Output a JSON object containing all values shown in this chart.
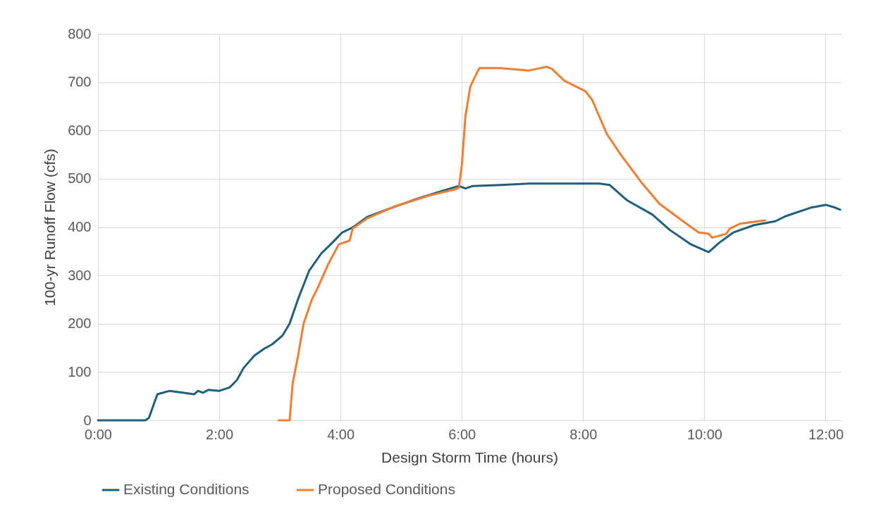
{
  "chart_data": {
    "type": "line",
    "xlabel": "Design Storm Time (hours)",
    "ylabel": "100-yr Runoff Flow (cfs)",
    "xlim": [
      0,
      12.25
    ],
    "ylim": [
      0,
      800
    ],
    "xticks": [
      {
        "value": 0,
        "label": "0:00"
      },
      {
        "value": 2,
        "label": "2:00"
      },
      {
        "value": 4,
        "label": "4:00"
      },
      {
        "value": 6,
        "label": "6:00"
      },
      {
        "value": 8,
        "label": "8:00"
      },
      {
        "value": 10,
        "label": "10:00"
      },
      {
        "value": 12,
        "label": "12:00"
      }
    ],
    "yticks": [
      0,
      100,
      200,
      300,
      400,
      500,
      600,
      700,
      800
    ],
    "grid": true,
    "legend": "bottom",
    "line_style": "solid",
    "series": [
      {
        "name": "Existing Conditions",
        "color": "#1f5f7a",
        "x": [
          0,
          0.78,
          0.84,
          0.98,
          1.18,
          1.59,
          1.65,
          1.73,
          1.82,
          2.0,
          2.17,
          2.29,
          2.4,
          2.58,
          2.75,
          2.87,
          3.04,
          3.16,
          3.3,
          3.48,
          3.68,
          3.86,
          4.03,
          4.2,
          4.44,
          4.78,
          5.25,
          5.6,
          5.95,
          6.06,
          6.18,
          6.64,
          7.11,
          8.27,
          8.44,
          8.73,
          9.14,
          9.43,
          9.78,
          10.07,
          10.24,
          10.48,
          10.82,
          11.17,
          11.35,
          11.75,
          12.0,
          12.16,
          12.24
        ],
        "values": [
          0,
          0,
          5,
          54,
          61,
          54,
          61,
          57,
          63,
          61,
          68,
          83,
          108,
          134,
          149,
          157,
          175,
          200,
          251,
          309,
          345,
          367,
          389,
          399,
          421,
          437,
          458,
          472,
          485,
          480,
          485,
          487,
          490,
          490,
          487,
          455,
          426,
          394,
          364,
          348,
          367,
          389,
          404,
          412,
          423,
          440,
          446,
          440,
          436
        ]
      },
      {
        "name": "Proposed Conditions",
        "color": "#f07e33",
        "x": [
          2.98,
          3.16,
          3.21,
          3.3,
          3.39,
          3.53,
          3.62,
          3.8,
          3.97,
          4.15,
          4.2,
          4.44,
          4.9,
          5.48,
          5.89,
          5.95,
          6.0,
          6.06,
          6.14,
          6.24,
          6.29,
          6.64,
          7.11,
          7.4,
          7.49,
          7.69,
          8.04,
          8.15,
          8.39,
          8.62,
          8.97,
          9.26,
          9.66,
          9.9,
          10.07,
          10.13,
          10.36,
          10.42,
          10.59,
          10.82,
          11.0
        ],
        "values": [
          0,
          0,
          76,
          134,
          200,
          251,
          273,
          324,
          364,
          372,
          397,
          418,
          443,
          466,
          478,
          481,
          528,
          630,
          691,
          717,
          729,
          729,
          724,
          732,
          727,
          703,
          681,
          663,
          593,
          550,
          491,
          448,
          411,
          389,
          386,
          378,
          386,
          397,
          407,
          411,
          414
        ]
      }
    ]
  }
}
